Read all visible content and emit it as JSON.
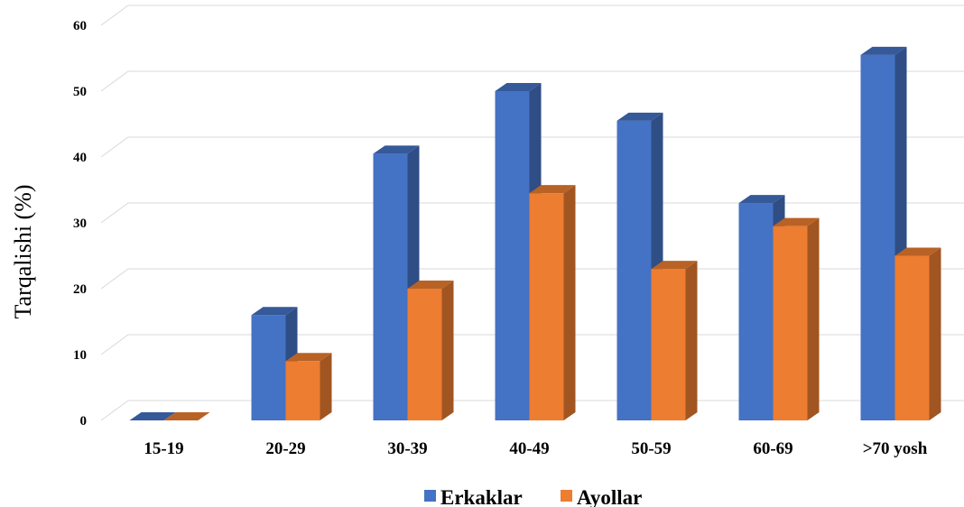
{
  "chart_data": {
    "type": "bar",
    "style": "3d-clustered-column",
    "title": "",
    "xlabel": "",
    "ylabel": "Tarqalishi (%)",
    "categories": [
      "15-19",
      "20-29",
      "30-39",
      "40-49",
      "50-59",
      "60-69",
      ">70 yosh"
    ],
    "series": [
      {
        "name": "Erkaklar",
        "color": "#4472C4",
        "values": [
          0,
          16,
          40.5,
          50,
          45.5,
          33,
          55.5
        ]
      },
      {
        "name": "Ayollar",
        "color": "#ED7D31",
        "values": [
          0,
          9,
          20,
          34.5,
          23,
          29.5,
          25
        ]
      }
    ],
    "ylim": [
      0,
      60
    ],
    "yticks": [
      0,
      10,
      20,
      30,
      40,
      50,
      60
    ],
    "grid": true,
    "legend_position": "bottom"
  }
}
